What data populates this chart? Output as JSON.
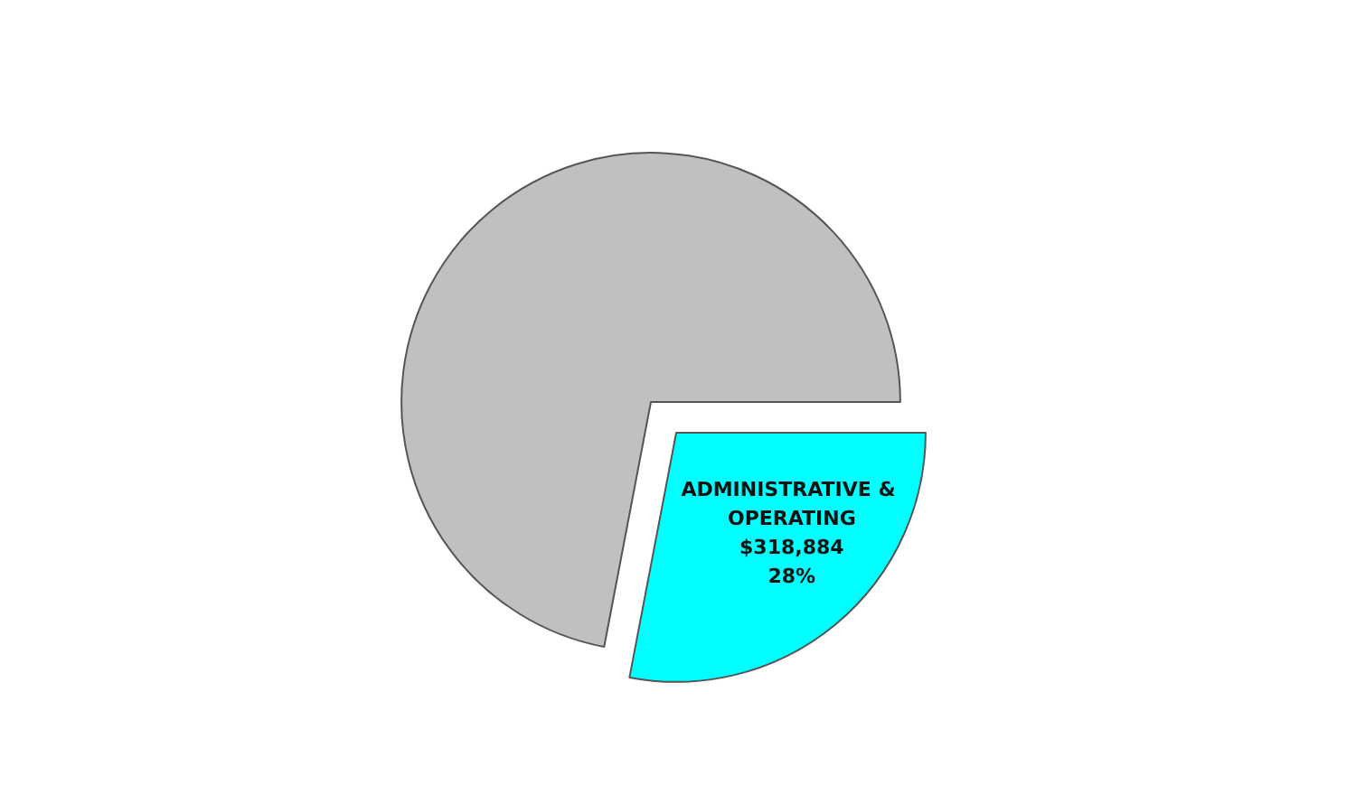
{
  "chart_data": {
    "type": "pie",
    "categories": [
      "ADMINISTRATIVE & OPERATING",
      null
    ],
    "values": [
      28,
      72
    ],
    "colors": [
      "#00ffff",
      "#c0c0c0"
    ],
    "value_labels": [
      "$318,884\n28%",
      null
    ],
    "legend": false
  }
}
